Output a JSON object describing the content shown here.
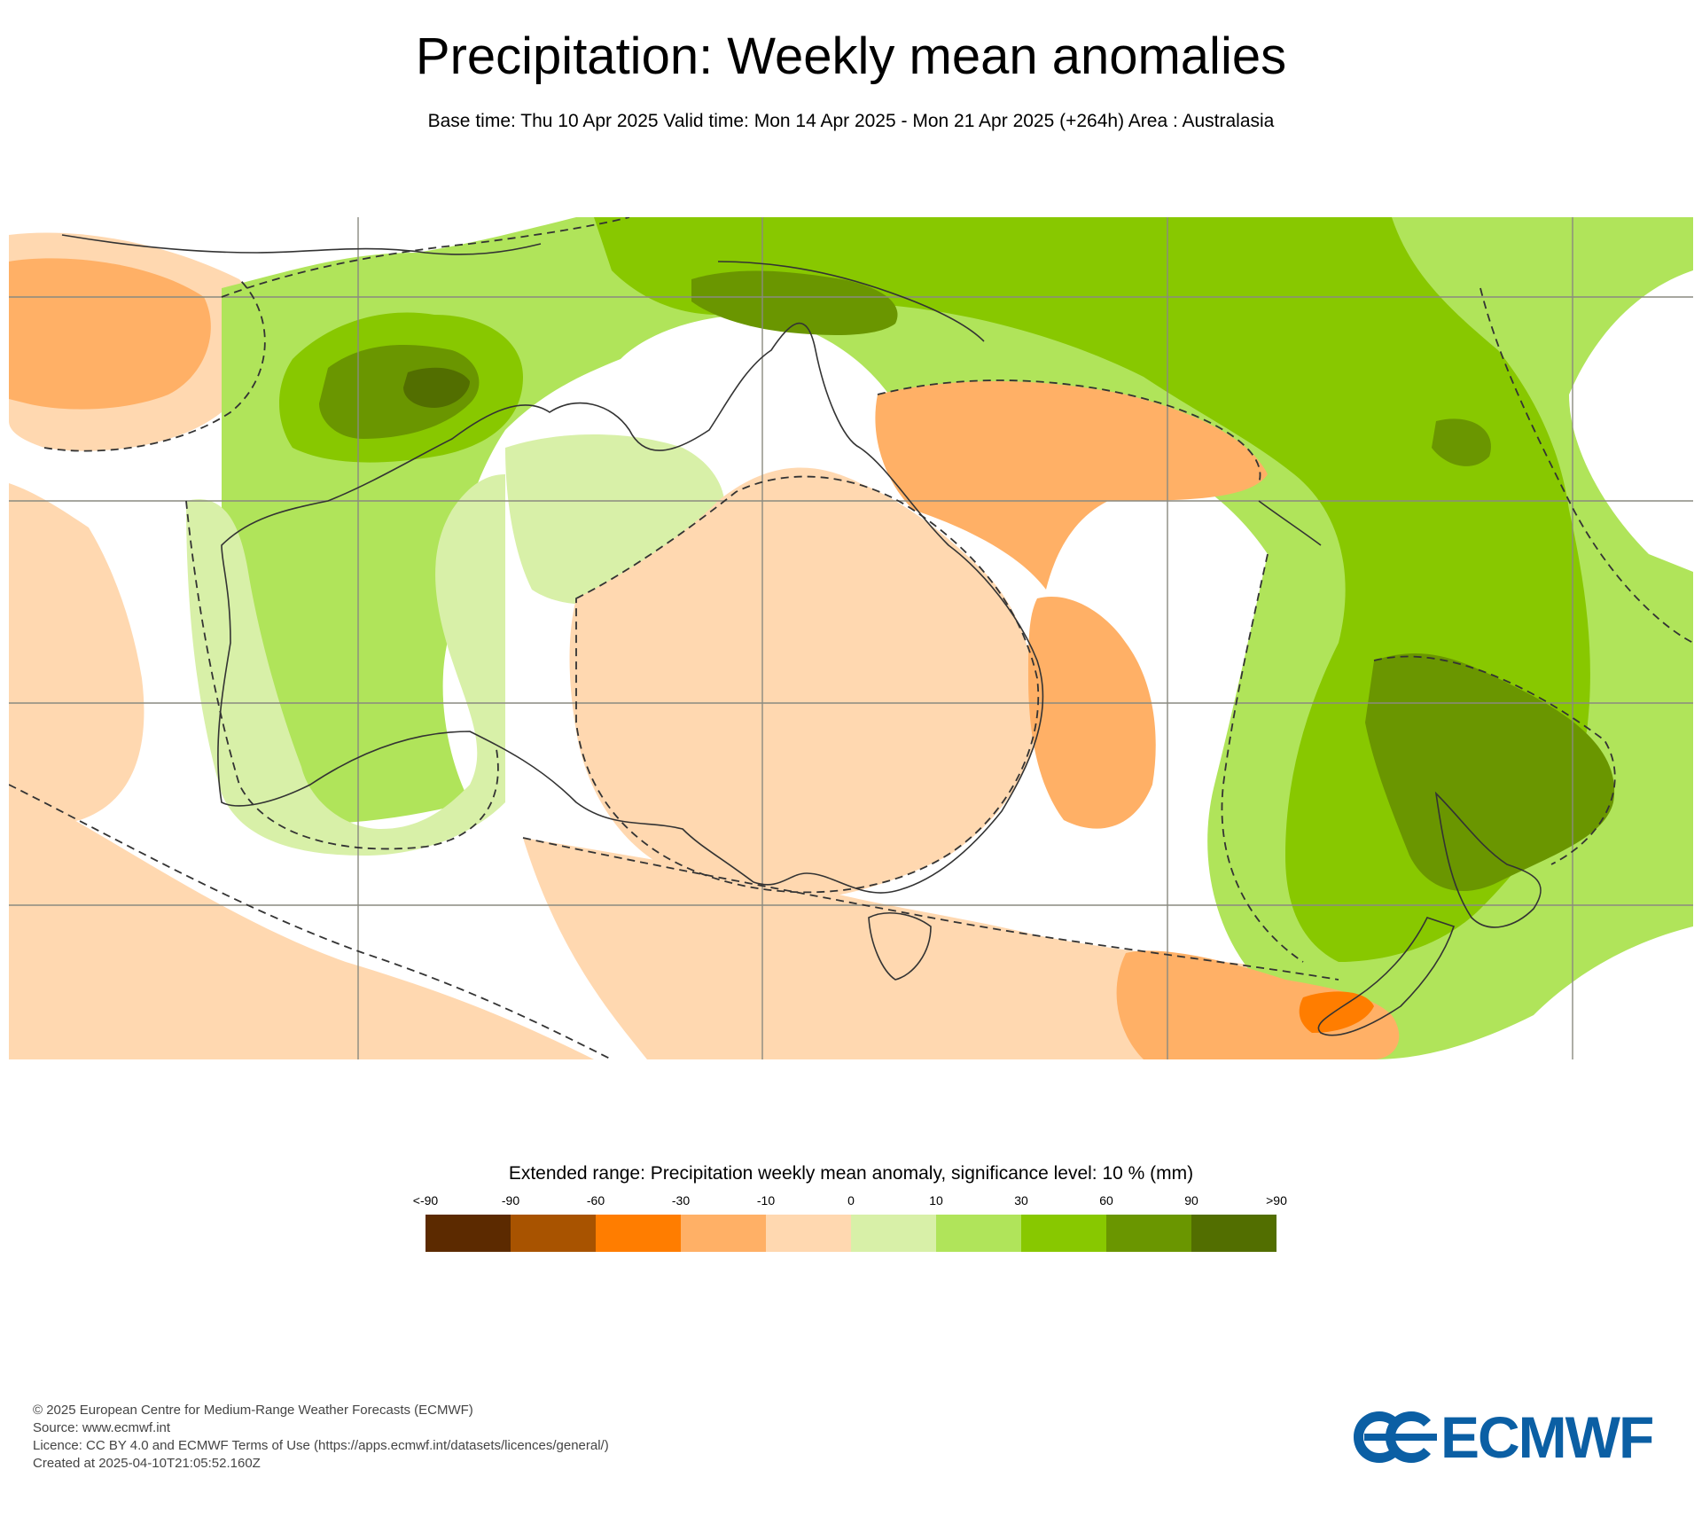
{
  "header": {
    "title": "Precipitation: Weekly mean anomalies",
    "subtitle": "Base time: Thu 10 Apr 2025 Valid time: Mon 14 Apr 2025 - Mon 21 Apr 2025 (+264h) Area : Australasia"
  },
  "map": {
    "region": "Australasia",
    "contour_style": "dashed significance contours",
    "field": "precipitation weekly mean anomaly",
    "features": {
      "wet_anomaly_regions": [
        "Indonesia and Papua New Guinea",
        "Timor Sea and north-west Australia",
        "Tasman Sea and New Zealand",
        "South-west Pacific"
      ],
      "dry_anomaly_regions": [
        "Central and eastern Australia",
        "Coral Sea",
        "Southern Ocean south of Australia"
      ]
    }
  },
  "legend": {
    "title": "Extended range: Precipitation weekly mean anomaly, significance level: 10 % (mm)",
    "labels": [
      "<-90",
      "-90",
      "-60",
      "-30",
      "-10",
      "0",
      "10",
      "30",
      "60",
      "90",
      ">90"
    ],
    "colors": [
      "#5c2a00",
      "#a85300",
      "#ff7d00",
      "#ffb066",
      "#ffd8b0",
      "#d8f0a8",
      "#b0e45a",
      "#88c800",
      "#6a9600",
      "#526e00"
    ]
  },
  "footer": {
    "copyright": "© 2025 European Centre for Medium-Range Weather Forecasts (ECMWF)",
    "source": "Source: www.ecmwf.int",
    "licence": "Licence: CC BY 4.0 and ECMWF Terms of Use (https://apps.ecmwf.int/datasets/licences/general/)",
    "created": "Created at 2025-04-10T21:05:52.160Z"
  },
  "logo": {
    "text": "ECMWF",
    "color": "#0b5fa4"
  }
}
